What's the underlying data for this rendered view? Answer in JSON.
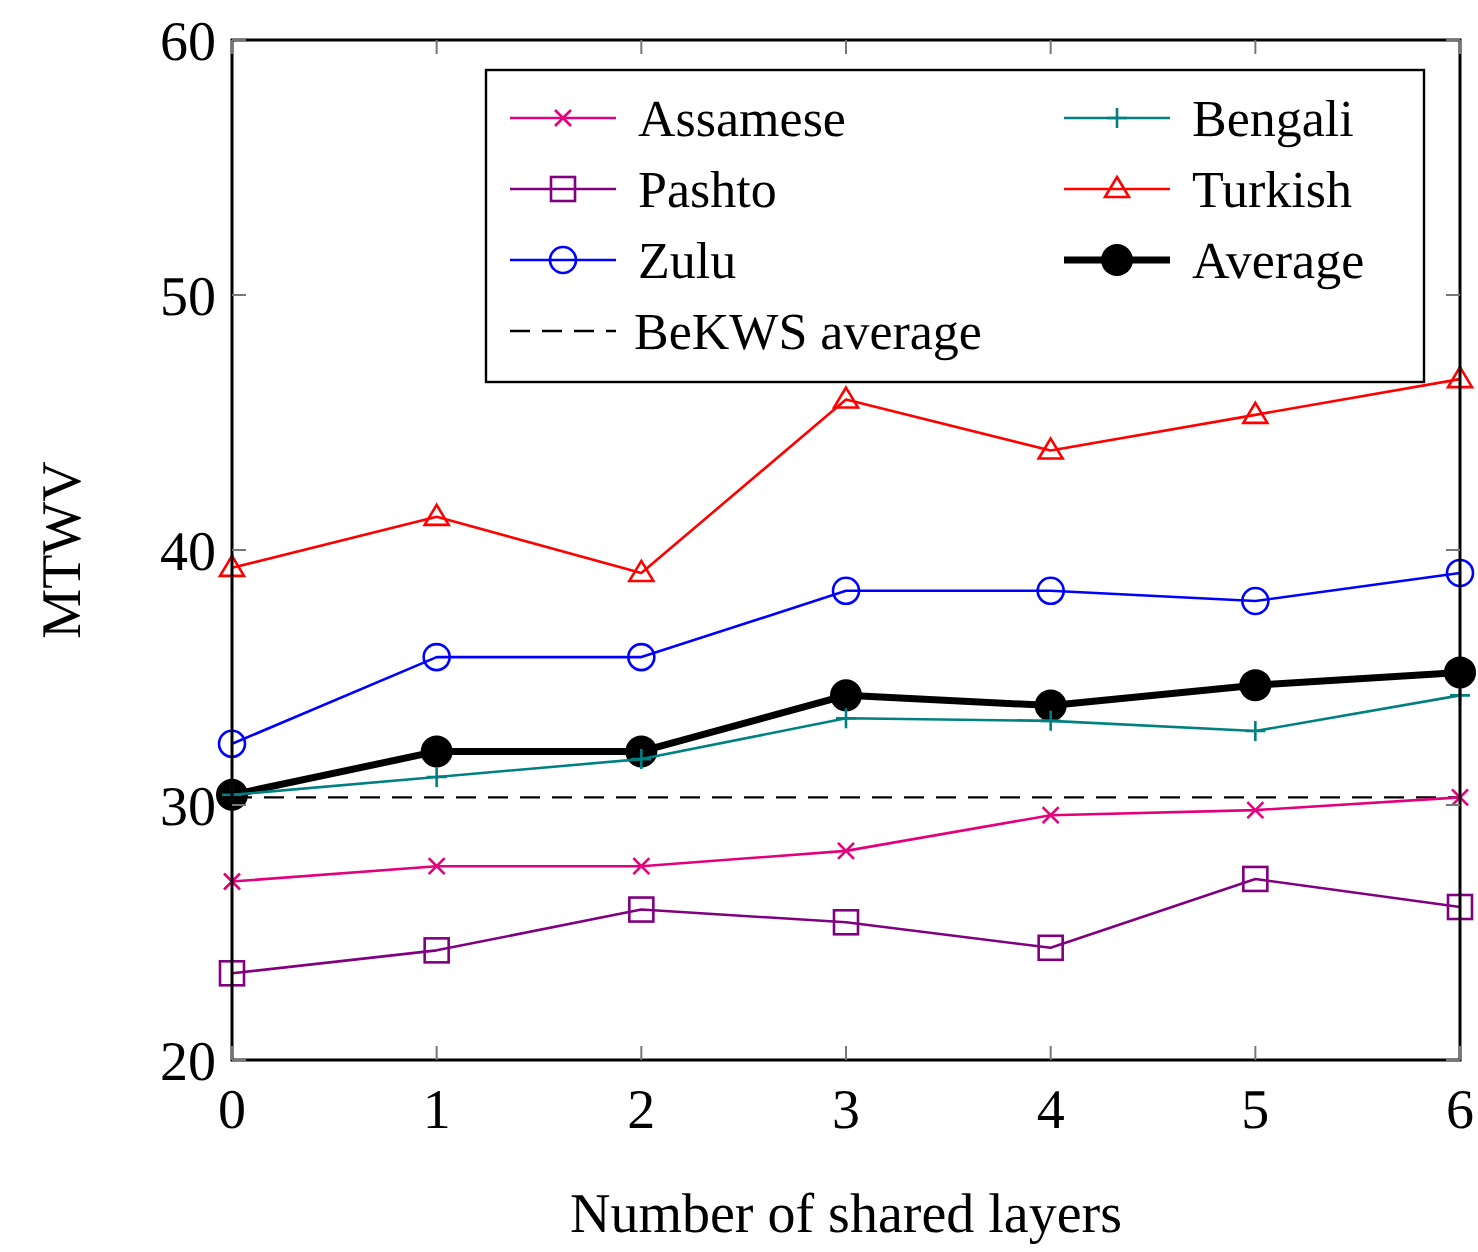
{
  "chart_data": {
    "type": "line",
    "xlabel": "Number of shared layers",
    "ylabel": "MTWV",
    "x": [
      0,
      1,
      2,
      3,
      4,
      5,
      6
    ],
    "xlim": [
      0,
      6
    ],
    "xticks": [
      0,
      1,
      2,
      3,
      4,
      5,
      6
    ],
    "ylim": [
      20,
      60
    ],
    "yticks": [
      20,
      30,
      40,
      50,
      60
    ],
    "grid": false,
    "legend": "top right",
    "series": [
      {
        "name": "Assamese",
        "color": "#e4007c",
        "marker": "cross",
        "values": [
          27.0,
          27.6,
          27.6,
          28.2,
          29.6,
          29.8,
          30.3
        ]
      },
      {
        "name": "Bengali",
        "color": "#008080",
        "marker": "plus",
        "values": [
          30.4,
          31.1,
          31.8,
          33.4,
          33.3,
          32.9,
          34.3
        ]
      },
      {
        "name": "Pashto",
        "color": "#800080",
        "marker": "square",
        "values": [
          23.4,
          24.3,
          25.9,
          25.4,
          24.4,
          27.1,
          26.0
        ]
      },
      {
        "name": "Turkish",
        "color": "#ff0000",
        "marker": "triangle",
        "values": [
          39.3,
          41.3,
          39.1,
          45.9,
          43.9,
          45.3,
          46.7
        ]
      },
      {
        "name": "Zulu",
        "color": "#0000ff",
        "marker": "circle",
        "values": [
          32.4,
          35.8,
          35.8,
          38.4,
          38.4,
          38.0,
          39.1
        ]
      },
      {
        "name": "Average",
        "color": "#000000",
        "marker": "filled_circle",
        "values": [
          30.4,
          32.1,
          32.1,
          34.3,
          33.9,
          34.7,
          35.2
        ]
      }
    ],
    "ref_lines": [
      {
        "axis": "y",
        "value": 30.3,
        "label": "BeKWS average",
        "color": "#000000",
        "line_style": "dashed"
      }
    ]
  }
}
